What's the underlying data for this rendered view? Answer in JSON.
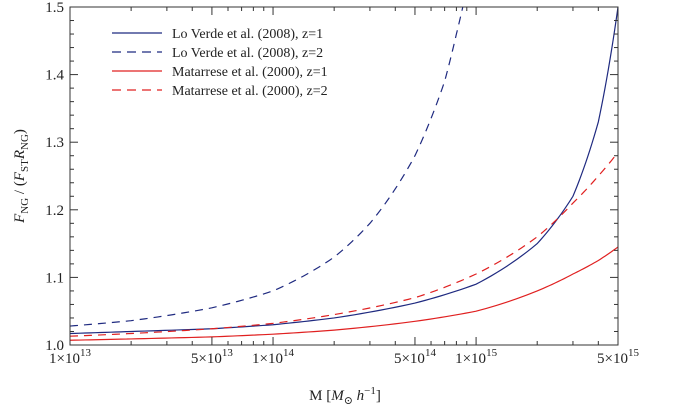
{
  "chart_data": {
    "type": "line",
    "title": "",
    "xlabel": {
      "prefix": "M [",
      "sym1": "M",
      "sym1_sub": "⊙",
      "sym2": " h",
      "sym2_sup": "−1",
      "suffix": "]"
    },
    "ylabel": {
      "num": "F",
      "num_sub": "NG",
      "mid": " / (",
      "den1": "F",
      "den1_sub": "ST",
      "den2": "R",
      "den2_sub": "NG",
      "end": ")"
    },
    "x_scale": "log",
    "xlim": [
      10000000000000.0,
      5000000000000000.0
    ],
    "ylim": [
      1.0,
      1.5
    ],
    "grid": false,
    "legend_position": "top-left",
    "x_ticks": [
      {
        "value": 10000000000000.0,
        "mant": "1",
        "exp": "13"
      },
      {
        "value": 50000000000000.0,
        "mant": "5",
        "exp": "13"
      },
      {
        "value": 100000000000000.0,
        "mant": "1",
        "exp": "14"
      },
      {
        "value": 500000000000000.0,
        "mant": "5",
        "exp": "14"
      },
      {
        "value": 1000000000000000.0,
        "mant": "1",
        "exp": "15"
      },
      {
        "value": 5000000000000000.0,
        "mant": "5",
        "exp": "15"
      }
    ],
    "y_ticks": [
      {
        "value": 1.0,
        "label": "1.0"
      },
      {
        "value": 1.1,
        "label": "1.1"
      },
      {
        "value": 1.2,
        "label": "1.2"
      },
      {
        "value": 1.3,
        "label": "1.3"
      },
      {
        "value": 1.4,
        "label": "1.4"
      },
      {
        "value": 1.5,
        "label": "1.5"
      }
    ],
    "series": [
      {
        "name": "Lo Verde et al. (2008), z=1",
        "color": "#1f2a80",
        "dash": "solid",
        "points": [
          [
            10000000000000.0,
            1.017
          ],
          [
            20000000000000.0,
            1.02
          ],
          [
            50000000000000.0,
            1.024
          ],
          [
            100000000000000.0,
            1.03
          ],
          [
            200000000000000.0,
            1.04
          ],
          [
            500000000000000.0,
            1.062
          ],
          [
            1000000000000000.0,
            1.09
          ],
          [
            2000000000000000.0,
            1.15
          ],
          [
            3000000000000000.0,
            1.22
          ],
          [
            4000000000000000.0,
            1.33
          ],
          [
            5000000000000000.0,
            1.5
          ]
        ]
      },
      {
        "name": "Lo Verde et al. (2008), z=2",
        "color": "#1f2a80",
        "dash": "dashed",
        "points": [
          [
            10000000000000.0,
            1.028
          ],
          [
            20000000000000.0,
            1.036
          ],
          [
            50000000000000.0,
            1.055
          ],
          [
            100000000000000.0,
            1.08
          ],
          [
            200000000000000.0,
            1.13
          ],
          [
            300000000000000.0,
            1.18
          ],
          [
            500000000000000.0,
            1.28
          ],
          [
            700000000000000.0,
            1.39
          ],
          [
            800000000000000.0,
            1.46
          ],
          [
            860000000000000.0,
            1.5
          ]
        ]
      },
      {
        "name": "Matarrese et al. (2000), z=1",
        "color": "#e02020",
        "dash": "solid",
        "points": [
          [
            10000000000000.0,
            1.007
          ],
          [
            20000000000000.0,
            1.009
          ],
          [
            50000000000000.0,
            1.012
          ],
          [
            100000000000000.0,
            1.016
          ],
          [
            200000000000000.0,
            1.022
          ],
          [
            500000000000000.0,
            1.035
          ],
          [
            1000000000000000.0,
            1.05
          ],
          [
            2000000000000000.0,
            1.08
          ],
          [
            3000000000000000.0,
            1.105
          ],
          [
            4000000000000000.0,
            1.125
          ],
          [
            5000000000000000.0,
            1.145
          ]
        ]
      },
      {
        "name": "Matarrese et al. (2000), z=2",
        "color": "#e02020",
        "dash": "dashed",
        "points": [
          [
            10000000000000.0,
            1.013
          ],
          [
            20000000000000.0,
            1.017
          ],
          [
            50000000000000.0,
            1.024
          ],
          [
            100000000000000.0,
            1.032
          ],
          [
            200000000000000.0,
            1.045
          ],
          [
            500000000000000.0,
            1.07
          ],
          [
            1000000000000000.0,
            1.105
          ],
          [
            2000000000000000.0,
            1.16
          ],
          [
            3000000000000000.0,
            1.21
          ],
          [
            4000000000000000.0,
            1.25
          ],
          [
            5000000000000000.0,
            1.285
          ]
        ]
      }
    ]
  }
}
